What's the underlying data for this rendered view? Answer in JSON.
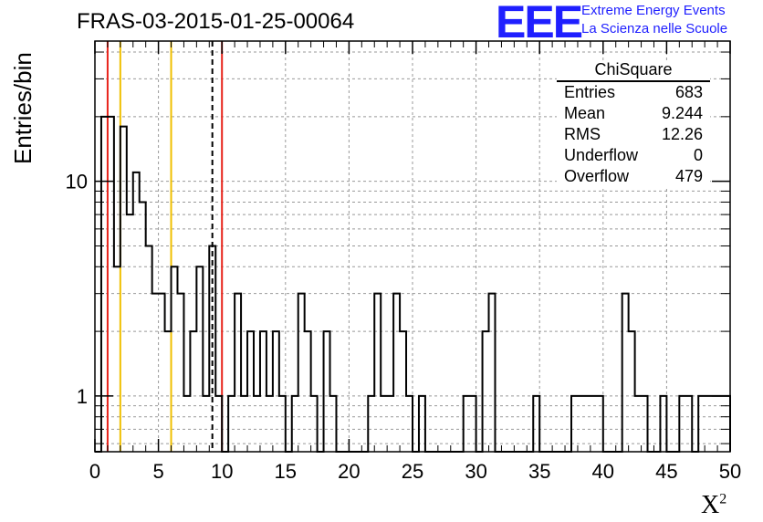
{
  "header": {
    "title": "FRAS-03-2015-01-25-00064",
    "logo": "EEE",
    "logo_line1": "Extreme Energy Events",
    "logo_line2": "La Scienza nelle Scuole"
  },
  "stats_box": {
    "title": "ChiSquare",
    "rows": [
      {
        "label": "Entries",
        "value": "683"
      },
      {
        "label": "Mean",
        "value": "9.244"
      },
      {
        "label": "RMS",
        "value": "12.26"
      },
      {
        "label": "Underflow",
        "value": "0"
      },
      {
        "label": "Overflow",
        "value": "479"
      }
    ]
  },
  "chart_data": {
    "type": "bar",
    "style": "step-histogram",
    "ylabel": "Entries/bin",
    "xlabel": "X",
    "xlabel_sup": "2",
    "xlim": [
      0,
      50
    ],
    "ylim": [
      0.55,
      45
    ],
    "yscale": "log",
    "grid": true,
    "bin_width": 0.5,
    "x_ticks": [
      0,
      5,
      10,
      15,
      20,
      25,
      30,
      35,
      40,
      45,
      50
    ],
    "y_ticks": [
      1,
      10
    ],
    "bins": [
      [
        0.5,
        20
      ],
      [
        1.0,
        20
      ],
      [
        1.5,
        4
      ],
      [
        2.0,
        18
      ],
      [
        2.5,
        7
      ],
      [
        3.0,
        11
      ],
      [
        3.5,
        8
      ],
      [
        4.0,
        5
      ],
      [
        4.5,
        3
      ],
      [
        5.0,
        3
      ],
      [
        5.5,
        2
      ],
      [
        6.0,
        4
      ],
      [
        6.5,
        3
      ],
      [
        7.0,
        1
      ],
      [
        7.5,
        2
      ],
      [
        8.0,
        4
      ],
      [
        8.5,
        1
      ],
      [
        9.0,
        5
      ],
      [
        9.5,
        1
      ],
      [
        10.5,
        1
      ],
      [
        11.0,
        3
      ],
      [
        11.5,
        1
      ],
      [
        12.0,
        2
      ],
      [
        12.5,
        1
      ],
      [
        13.0,
        2
      ],
      [
        13.5,
        1
      ],
      [
        14.0,
        2
      ],
      [
        14.5,
        1
      ],
      [
        15.5,
        1
      ],
      [
        16.0,
        3
      ],
      [
        16.5,
        2
      ],
      [
        17.0,
        1
      ],
      [
        18.0,
        2
      ],
      [
        18.5,
        1
      ],
      [
        21.5,
        1
      ],
      [
        22.0,
        3
      ],
      [
        22.5,
        1
      ],
      [
        23.0,
        1
      ],
      [
        23.5,
        3
      ],
      [
        24.0,
        2
      ],
      [
        24.5,
        1
      ],
      [
        25.5,
        1
      ],
      [
        29.0,
        1
      ],
      [
        29.5,
        1
      ],
      [
        30.5,
        2
      ],
      [
        31.0,
        3
      ],
      [
        34.5,
        1
      ],
      [
        37.5,
        1
      ],
      [
        38.0,
        1
      ],
      [
        38.5,
        1
      ],
      [
        39.0,
        1
      ],
      [
        39.5,
        1
      ],
      [
        41.5,
        3
      ],
      [
        42.0,
        2
      ],
      [
        42.5,
        1
      ],
      [
        43.0,
        1
      ],
      [
        44.5,
        1
      ],
      [
        46.0,
        1
      ],
      [
        46.5,
        1
      ],
      [
        47.5,
        1
      ],
      [
        48.0,
        1
      ],
      [
        48.5,
        1
      ],
      [
        49.0,
        1
      ],
      [
        49.5,
        1
      ]
    ],
    "vertical_lines": [
      {
        "x": 1.0,
        "color": "#e8231b",
        "style": "solid"
      },
      {
        "x": 2.0,
        "color": "#f0c000",
        "style": "solid"
      },
      {
        "x": 6.0,
        "color": "#f0c000",
        "style": "solid"
      },
      {
        "x": 9.244,
        "color": "#000000",
        "style": "dashed"
      },
      {
        "x": 10.0,
        "color": "#e8231b",
        "style": "solid"
      }
    ]
  }
}
